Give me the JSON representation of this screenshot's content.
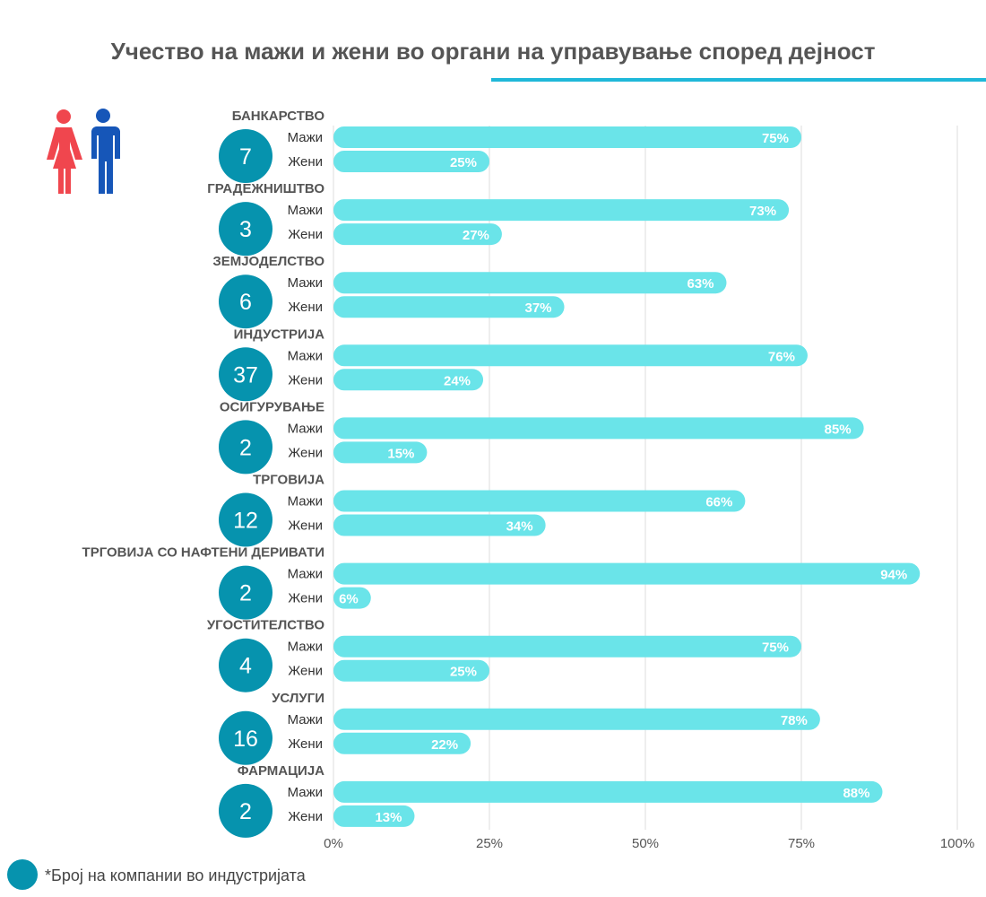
{
  "title": "Учество на мажи и жени во органи на управување според дејност",
  "footnote": "*Број на компании во индустријата",
  "colors": {
    "bar": "#6ae4e9",
    "circle": "#0693ae",
    "grid": "#dddddd",
    "accent": "#1fb8d9",
    "female": "#f0464e",
    "male": "#1656b8",
    "text": "#555555"
  },
  "chart_data": {
    "type": "bar",
    "orientation": "horizontal",
    "title": "Учество на мажи и жени во органи на управување според дејност",
    "xlim": [
      0,
      100
    ],
    "x_ticks": [
      "0%",
      "25%",
      "50%",
      "75%",
      "100%"
    ],
    "x_tick_values": [
      0,
      25,
      50,
      75,
      100
    ],
    "series_names": [
      "Мажи",
      "Жени"
    ],
    "categories": [
      {
        "name": "БАНКАРСТВО",
        "count": "7",
        "values": [
          75,
          25
        ],
        "labels": [
          "75%",
          "25%"
        ]
      },
      {
        "name": "ГРАДЕЖНИШТВО",
        "count": "3",
        "values": [
          73,
          27
        ],
        "labels": [
          "73%",
          "27%"
        ]
      },
      {
        "name": "ЗЕМЈОДЕЛСТВО",
        "count": "6",
        "values": [
          63,
          37
        ],
        "labels": [
          "63%",
          "37%"
        ]
      },
      {
        "name": "ИНДУСТРИЈА",
        "count": "37",
        "values": [
          76,
          24
        ],
        "labels": [
          "76%",
          "24%"
        ]
      },
      {
        "name": "ОСИГУРУВАЊЕ",
        "count": "2",
        "values": [
          85,
          15
        ],
        "labels": [
          "85%",
          "15%"
        ]
      },
      {
        "name": "ТРГОВИЈА",
        "count": "12",
        "values": [
          66,
          34
        ],
        "labels": [
          "66%",
          "34%"
        ]
      },
      {
        "name": "ТРГОВИЈА СО НАФТЕНИ ДЕРИВАТИ",
        "count": "2",
        "values": [
          94,
          6
        ],
        "labels": [
          "94%",
          "6%"
        ]
      },
      {
        "name": "УГОСТИТЕЛСТВО",
        "count": "4",
        "values": [
          75,
          25
        ],
        "labels": [
          "75%",
          "25%"
        ]
      },
      {
        "name": "УСЛУГИ",
        "count": "16",
        "values": [
          78,
          22
        ],
        "labels": [
          "78%",
          "22%"
        ]
      },
      {
        "name": "ФАРМАЦИЈА",
        "count": "2",
        "values": [
          88,
          13
        ],
        "labels": [
          "88%",
          "13%"
        ]
      }
    ]
  }
}
